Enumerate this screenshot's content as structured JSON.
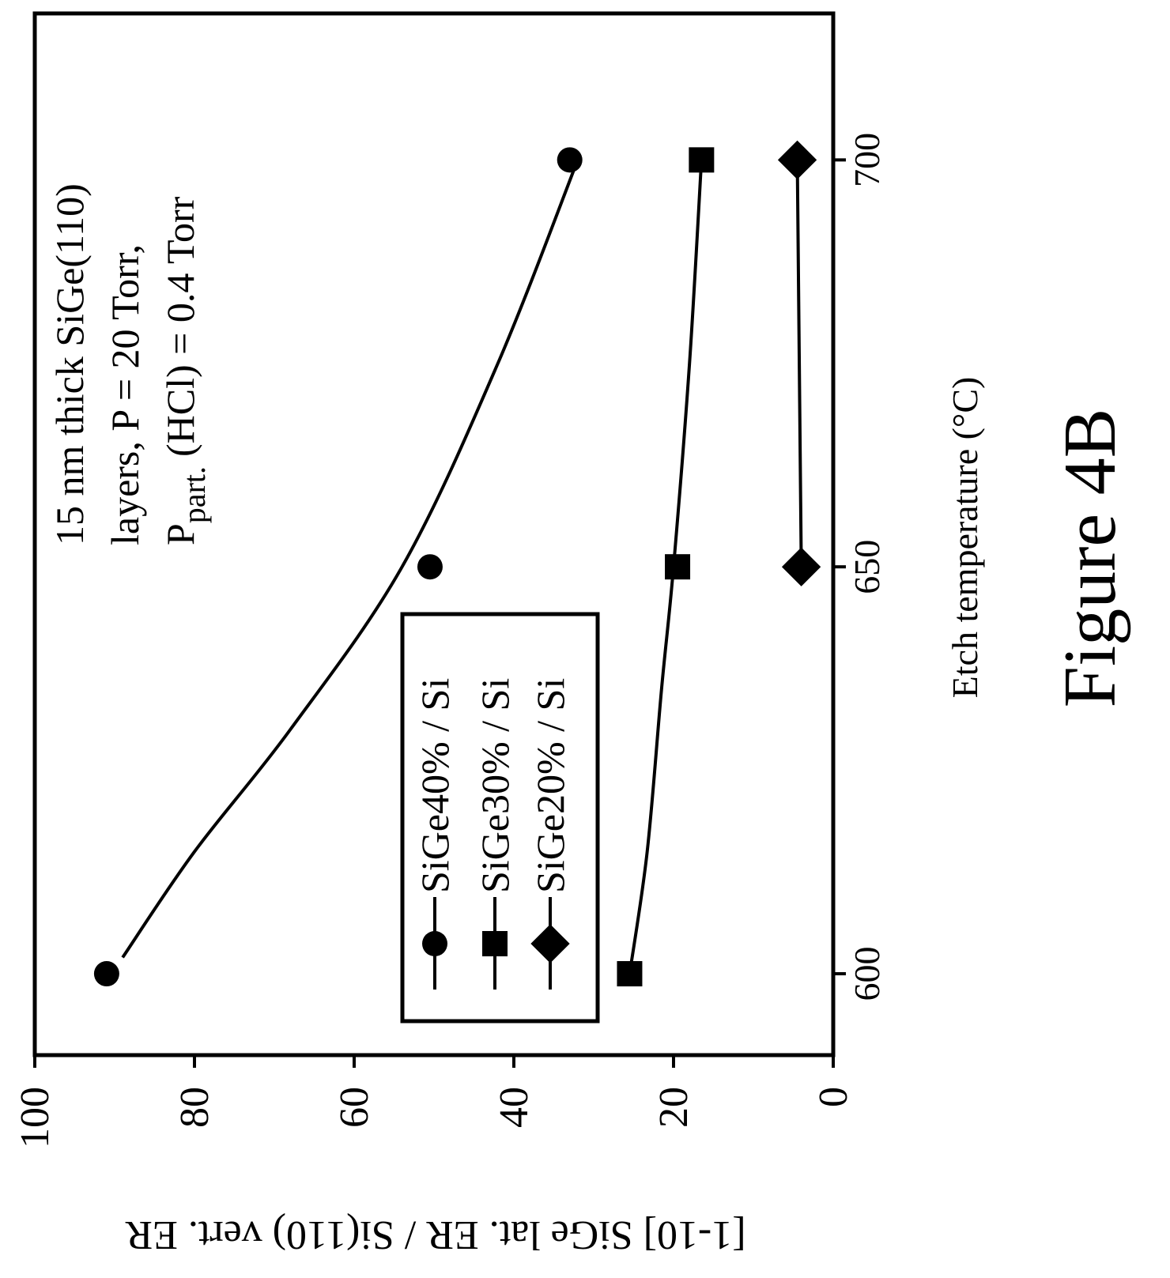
{
  "figure_caption": "Figure 4B",
  "colors": {
    "ink": "#000000",
    "background": "#ffffff"
  },
  "chart_data": {
    "type": "line",
    "orientation": "rotated 90 degrees counter-clockwise",
    "title": "",
    "xlabel": "Etch temperature (°C)",
    "ylabel": "[1-10] SiGe lat. ER / Si(110) vert. ER",
    "xlim": [
      590,
      718
    ],
    "ylim": [
      0,
      100
    ],
    "x_ticks": [
      600,
      650,
      700
    ],
    "y_ticks": [
      0,
      20,
      40,
      60,
      80,
      100
    ],
    "grid": false,
    "legend_position": "bottom-center",
    "annotation": {
      "line1": "15 nm thick SiGe(110)",
      "line2": "layers, P = 20 Torr,",
      "line3_main": "P",
      "line3_sub": "part.",
      "line3_rest": "(HCl) = 0.4 Torr"
    },
    "series": [
      {
        "name": "SiGe40% / Si",
        "marker": "circle",
        "points": [
          [
            600,
            91
          ],
          [
            650,
            50.5
          ],
          [
            700,
            33
          ]
        ],
        "fit_curve": [
          [
            602,
            89
          ],
          [
            615,
            80
          ],
          [
            630,
            68
          ],
          [
            650,
            54
          ],
          [
            675,
            42
          ],
          [
            700,
            32
          ]
        ]
      },
      {
        "name": "SiGe30% / Si",
        "marker": "square",
        "points": [
          [
            600,
            25.5
          ],
          [
            650,
            19.5
          ],
          [
            700,
            16.5
          ]
        ],
        "fit_curve": [
          [
            600,
            25.5
          ],
          [
            615,
            23.3
          ],
          [
            635,
            21.5
          ],
          [
            650,
            20
          ],
          [
            675,
            18
          ],
          [
            700,
            16.5
          ]
        ]
      },
      {
        "name": "SiGe20% / Si",
        "marker": "diamond",
        "points": [
          [
            600,
            null
          ],
          [
            650,
            4
          ],
          [
            700,
            4.5
          ]
        ],
        "fit_curve": [
          [
            650,
            4
          ],
          [
            700,
            4.5
          ]
        ]
      }
    ]
  }
}
